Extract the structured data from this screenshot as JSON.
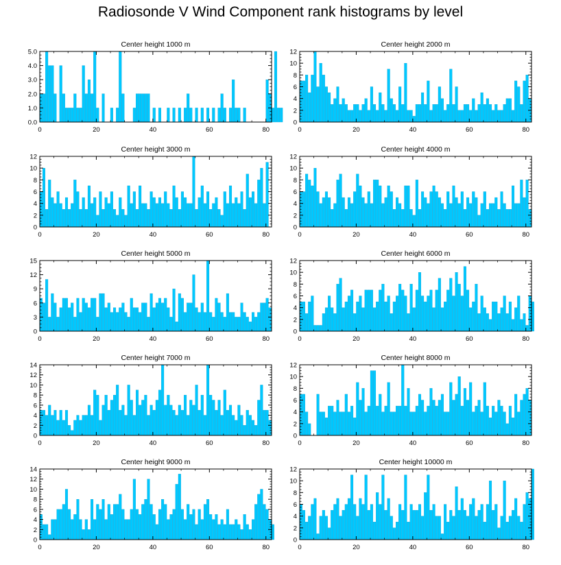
{
  "page": {
    "title": "Radiosonde V Wind Component rank histograms by level"
  },
  "style": {
    "bar_color": "#00C8FF",
    "bar_edge_color": "#0096C8",
    "axis_color": "#000000"
  },
  "chart_data": [
    {
      "type": "bar",
      "title": "Center height 1000 m",
      "xlim": [
        0,
        82
      ],
      "xticks": [
        0,
        20,
        40,
        60,
        80
      ],
      "xtick_labels": [
        "0",
        "20",
        "40",
        "60",
        "80"
      ],
      "ylim": [
        0,
        5
      ],
      "yticks": [
        0,
        1,
        2,
        3,
        4,
        5
      ],
      "ytick_labels": [
        "0.0",
        "1.0",
        "2.0",
        "3.0",
        "4.0",
        "5.0"
      ],
      "values": [
        2,
        2,
        5,
        4,
        4,
        2,
        0,
        4,
        2,
        1,
        1,
        1,
        2,
        1,
        1,
        4,
        2,
        3,
        2,
        5,
        1,
        0,
        2,
        0,
        0,
        1,
        0,
        1,
        5,
        2,
        0,
        0,
        0,
        1,
        2,
        2,
        2,
        2,
        2,
        0,
        1,
        0,
        1,
        0,
        0,
        1,
        0,
        1,
        0,
        1,
        0,
        1,
        2,
        1,
        0,
        1,
        0,
        1,
        0,
        1,
        0,
        1,
        0,
        1,
        2,
        1,
        0,
        1,
        3,
        1,
        1,
        0,
        1,
        0,
        0,
        0,
        0,
        0,
        0,
        0,
        3,
        2,
        1,
        5,
        1,
        1
      ]
    },
    {
      "type": "bar",
      "title": "Center height 2000 m",
      "xlim": [
        0,
        82
      ],
      "xticks": [
        0,
        20,
        40,
        60,
        80
      ],
      "xtick_labels": [
        "0",
        "20",
        "40",
        "60",
        "80"
      ],
      "ylim": [
        0,
        12
      ],
      "yticks": [
        0,
        2,
        4,
        6,
        8,
        10,
        12
      ],
      "ytick_labels": [
        "0",
        "2",
        "4",
        "6",
        "8",
        "10",
        "12"
      ],
      "values": [
        7,
        7,
        8,
        5,
        8,
        12,
        6,
        10,
        8,
        6,
        5,
        3,
        4,
        6,
        3,
        4,
        3,
        2,
        2,
        3,
        3,
        2,
        3,
        4,
        2,
        6,
        3,
        2,
        5,
        3,
        2,
        9,
        4,
        3,
        2,
        6,
        3,
        10,
        2,
        2,
        1,
        3,
        3,
        5,
        3,
        7,
        2,
        3,
        3,
        6,
        4,
        2,
        3,
        9,
        3,
        6,
        2,
        2,
        3,
        3,
        2,
        4,
        2,
        3,
        5,
        3,
        4,
        3,
        2,
        3,
        2,
        2,
        3,
        4,
        4,
        2,
        7,
        6,
        3,
        7,
        8,
        4
      ]
    },
    {
      "type": "bar",
      "title": "Center height 3000 m",
      "xlim": [
        0,
        82
      ],
      "xticks": [
        0,
        20,
        40,
        60,
        80
      ],
      "xtick_labels": [
        "0",
        "20",
        "40",
        "60",
        "80"
      ],
      "ylim": [
        0,
        12
      ],
      "yticks": [
        0,
        2,
        4,
        6,
        8,
        10,
        12
      ],
      "ytick_labels": [
        "0",
        "2",
        "4",
        "6",
        "8",
        "10",
        "12"
      ],
      "values": [
        6,
        10,
        3,
        8,
        5,
        4,
        6,
        4,
        3,
        5,
        3,
        4,
        8,
        6,
        3,
        5,
        3,
        7,
        4,
        5,
        2,
        6,
        3,
        5,
        4,
        6,
        3,
        2,
        5,
        3,
        2,
        7,
        4,
        6,
        3,
        7,
        4,
        4,
        3,
        6,
        5,
        4,
        5,
        4,
        6,
        4,
        3,
        7,
        5,
        3,
        6,
        5,
        4,
        4,
        12,
        3,
        5,
        7,
        4,
        6,
        3,
        4,
        5,
        3,
        2,
        6,
        4,
        7,
        4,
        5,
        4,
        6,
        3,
        9,
        5,
        6,
        4,
        8,
        10,
        4,
        11
      ]
    },
    {
      "type": "bar",
      "title": "Center height 4000 m",
      "xlim": [
        0,
        82
      ],
      "xticks": [
        0,
        20,
        40,
        60,
        80
      ],
      "xtick_labels": [
        "0",
        "20",
        "40",
        "60",
        "80"
      ],
      "ylim": [
        0,
        12
      ],
      "yticks": [
        0,
        2,
        4,
        6,
        8,
        10,
        12
      ],
      "ytick_labels": [
        "0",
        "2",
        "4",
        "6",
        "8",
        "10",
        "12"
      ],
      "values": [
        6,
        6,
        9,
        8,
        7,
        10,
        6,
        4,
        5,
        6,
        5,
        3,
        4,
        8,
        9,
        5,
        3,
        5,
        4,
        6,
        9,
        7,
        5,
        4,
        6,
        4,
        8,
        8,
        7,
        4,
        5,
        7,
        6,
        3,
        5,
        4,
        3,
        7,
        7,
        3,
        2,
        8,
        3,
        6,
        5,
        4,
        6,
        7,
        6,
        5,
        4,
        3,
        6,
        4,
        7,
        5,
        4,
        6,
        3,
        5,
        4,
        6,
        5,
        2,
        4,
        6,
        3,
        4,
        4,
        5,
        3,
        6,
        4,
        3,
        3,
        7,
        4,
        4,
        8,
        5,
        8,
        3
      ]
    },
    {
      "type": "bar",
      "title": "Center height 5000 m",
      "xlim": [
        0,
        82
      ],
      "xticks": [
        0,
        20,
        40,
        60,
        80
      ],
      "xtick_labels": [
        "0",
        "20",
        "40",
        "60",
        "80"
      ],
      "ylim": [
        0,
        15
      ],
      "yticks": [
        0,
        3,
        6,
        9,
        12,
        15
      ],
      "ytick_labels": [
        "0",
        "3",
        "6",
        "9",
        "12",
        "15"
      ],
      "values": [
        7,
        6,
        11,
        3,
        8,
        6,
        3,
        5,
        7,
        7,
        5,
        6,
        3,
        7,
        4,
        7,
        6,
        5,
        7,
        7,
        3,
        8,
        8,
        5,
        6,
        4,
        5,
        4,
        5,
        6,
        4,
        3,
        7,
        5,
        5,
        4,
        6,
        6,
        3,
        8,
        5,
        6,
        7,
        6,
        7,
        5,
        3,
        9,
        2,
        8,
        7,
        4,
        6,
        6,
        12,
        5,
        4,
        6,
        4,
        15,
        4,
        3,
        7,
        6,
        4,
        3,
        8,
        4,
        4,
        3,
        3,
        6,
        4,
        3,
        2,
        4,
        3,
        4,
        6,
        6,
        7,
        5
      ]
    },
    {
      "type": "bar",
      "title": "Center height 6000 m",
      "xlim": [
        0,
        82
      ],
      "xticks": [
        0,
        20,
        40,
        60,
        80
      ],
      "xtick_labels": [
        "0",
        "20",
        "40",
        "60",
        "80"
      ],
      "ylim": [
        0,
        12
      ],
      "yticks": [
        0,
        2,
        4,
        6,
        8,
        10,
        12
      ],
      "ytick_labels": [
        "0",
        "2",
        "4",
        "6",
        "8",
        "10",
        "12"
      ],
      "values": [
        5,
        5,
        3,
        5,
        6,
        1,
        1,
        1,
        3,
        4,
        6,
        4,
        3,
        8,
        9,
        4,
        5,
        6,
        7,
        3,
        5,
        6,
        4,
        7,
        7,
        7,
        4,
        5,
        7,
        8,
        5,
        6,
        3,
        5,
        6,
        8,
        7,
        6,
        3,
        8,
        4,
        7,
        10,
        6,
        5,
        6,
        7,
        4,
        7,
        9,
        4,
        5,
        7,
        9,
        6,
        10,
        8,
        6,
        11,
        7,
        4,
        5,
        8,
        3,
        6,
        4,
        3,
        2,
        5,
        5,
        3,
        4,
        6,
        3,
        5,
        2,
        4,
        6,
        2,
        3,
        1,
        6,
        5
      ]
    },
    {
      "type": "bar",
      "title": "Center height 7000 m",
      "xlim": [
        0,
        82
      ],
      "xticks": [
        0,
        20,
        40,
        60,
        80
      ],
      "xtick_labels": [
        "0",
        "20",
        "40",
        "60",
        "80"
      ],
      "ylim": [
        0,
        14
      ],
      "yticks": [
        0,
        2,
        4,
        6,
        8,
        10,
        12,
        14
      ],
      "ytick_labels": [
        "0",
        "2",
        "4",
        "6",
        "8",
        "10",
        "12",
        "14"
      ],
      "values": [
        5,
        5,
        4,
        6,
        4,
        5,
        3,
        5,
        3,
        5,
        2,
        1,
        3,
        4,
        3,
        4,
        4,
        6,
        4,
        9,
        8,
        3,
        6,
        8,
        5,
        7,
        8,
        10,
        5,
        6,
        4,
        10,
        7,
        4,
        9,
        6,
        7,
        8,
        4,
        6,
        5,
        7,
        9,
        14,
        6,
        8,
        6,
        5,
        4,
        6,
        5,
        8,
        4,
        7,
        6,
        10,
        5,
        8,
        4,
        14,
        8,
        7,
        5,
        7,
        4,
        9,
        5,
        6,
        4,
        3,
        6,
        4,
        2,
        5,
        4,
        3,
        2,
        7,
        10,
        5,
        5,
        3
      ]
    },
    {
      "type": "bar",
      "title": "Center height 8000 m",
      "xlim": [
        0,
        82
      ],
      "xticks": [
        0,
        20,
        40,
        60,
        80
      ],
      "xtick_labels": [
        "0",
        "20",
        "40",
        "60",
        "80"
      ],
      "ylim": [
        0,
        12
      ],
      "yticks": [
        0,
        2,
        4,
        6,
        8,
        10,
        12
      ],
      "ytick_labels": [
        "0",
        "2",
        "4",
        "6",
        "8",
        "10",
        "12"
      ],
      "values": [
        7,
        7,
        4,
        2,
        0,
        0,
        7,
        4,
        4,
        3,
        5,
        5,
        4,
        6,
        4,
        4,
        7,
        4,
        5,
        3,
        9,
        6,
        8,
        4,
        5,
        11,
        11,
        5,
        7,
        4,
        5,
        9,
        4,
        4,
        5,
        5,
        12,
        5,
        8,
        4,
        4,
        5,
        7,
        6,
        4,
        5,
        8,
        6,
        5,
        6,
        7,
        4,
        4,
        9,
        6,
        7,
        10,
        5,
        8,
        6,
        9,
        4,
        5,
        6,
        4,
        9,
        5,
        3,
        5,
        4,
        6,
        5,
        4,
        2,
        5,
        3,
        7,
        4,
        6,
        7,
        8,
        6
      ]
    },
    {
      "type": "bar",
      "title": "Center height 9000 m",
      "xlim": [
        0,
        82
      ],
      "xticks": [
        0,
        20,
        40,
        60,
        80
      ],
      "xtick_labels": [
        "0",
        "20",
        "40",
        "60",
        "80"
      ],
      "ylim": [
        0,
        14
      ],
      "yticks": [
        0,
        2,
        4,
        6,
        8,
        10,
        12,
        14
      ],
      "ytick_labels": [
        "0",
        "2",
        "4",
        "6",
        "8",
        "10",
        "12",
        "14"
      ],
      "values": [
        5,
        3,
        3,
        1,
        4,
        4,
        6,
        6,
        7,
        10,
        6,
        4,
        5,
        8,
        4,
        2,
        4,
        2,
        8,
        4,
        7,
        6,
        8,
        4,
        7,
        5,
        7,
        7,
        9,
        6,
        4,
        4,
        6,
        12,
        6,
        5,
        7,
        8,
        12,
        7,
        5,
        3,
        6,
        8,
        7,
        4,
        5,
        6,
        11,
        13,
        6,
        4,
        7,
        5,
        6,
        3,
        6,
        4,
        7,
        8,
        5,
        4,
        5,
        3,
        4,
        3,
        6,
        3,
        3,
        4,
        3,
        2,
        5,
        3,
        2,
        4,
        7,
        9,
        10,
        7,
        6,
        4,
        3
      ]
    },
    {
      "type": "bar",
      "title": "Center height 10000 m",
      "xlim": [
        0,
        82
      ],
      "xticks": [
        0,
        20,
        40,
        60,
        80
      ],
      "xtick_labels": [
        "0",
        "20",
        "40",
        "60",
        "80"
      ],
      "ylim": [
        0,
        12
      ],
      "yticks": [
        0,
        2,
        4,
        6,
        8,
        10,
        12
      ],
      "ytick_labels": [
        "0",
        "2",
        "4",
        "6",
        "8",
        "10",
        "12"
      ],
      "values": [
        6,
        5,
        3,
        4,
        6,
        7,
        1,
        4,
        5,
        4,
        2,
        5,
        6,
        7,
        4,
        5,
        6,
        7,
        11,
        6,
        4,
        7,
        6,
        11,
        5,
        6,
        3,
        8,
        6,
        11,
        5,
        7,
        4,
        2,
        3,
        6,
        5,
        11,
        3,
        6,
        5,
        5,
        6,
        4,
        8,
        11,
        5,
        6,
        4,
        4,
        1,
        6,
        3,
        5,
        4,
        9,
        5,
        7,
        5,
        4,
        6,
        7,
        4,
        5,
        6,
        3,
        6,
        10,
        5,
        6,
        2,
        4,
        10,
        3,
        4,
        5,
        7,
        4,
        3,
        6,
        8,
        7,
        12
      ]
    }
  ]
}
